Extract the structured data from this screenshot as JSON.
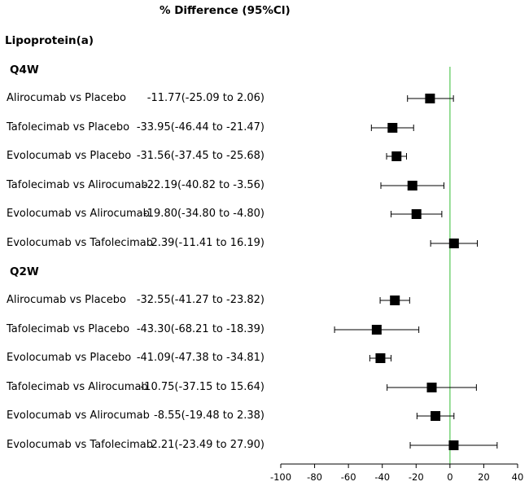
{
  "chart_data": {
    "type": "forest",
    "column_header": "% Difference (95%Cl)",
    "outcome": "Lipoprotein(a)",
    "reference_value": 0,
    "reference_color": "#7fd67f",
    "xlim": [
      -100,
      40
    ],
    "xticks": [
      -100,
      -80,
      -60,
      -40,
      -20,
      0,
      20,
      40
    ],
    "xtick_labels": [
      "-100",
      "-80",
      "-60",
      "-40",
      "-20",
      "0",
      "20",
      "40"
    ],
    "groups": [
      {
        "name": "Q4W",
        "rows": [
          {
            "label": "Alirocumab vs Placebo",
            "text": "-11.77(-25.09 to 2.06)",
            "estimate": -11.77,
            "lower": -25.09,
            "upper": 2.06
          },
          {
            "label": "Tafolecimab vs Placebo",
            "text": "-33.95(-46.44 to -21.47)",
            "estimate": -33.95,
            "lower": -46.44,
            "upper": -21.47
          },
          {
            "label": "Evolocumab vs Placebo",
            "text": "-31.56(-37.45 to -25.68)",
            "estimate": -31.56,
            "lower": -37.45,
            "upper": -25.68
          },
          {
            "label": "Tafolecimab vs Alirocumab",
            "text": "-22.19(-40.82 to -3.56)",
            "estimate": -22.19,
            "lower": -40.82,
            "upper": -3.56
          },
          {
            "label": "Evolocumab vs Alirocumab",
            "text": "-19.80(-34.80 to -4.80)",
            "estimate": -19.8,
            "lower": -34.8,
            "upper": -4.8
          },
          {
            "label": "Evolocumab vs Tafolecimab",
            "text": "2.39(-11.41 to 16.19)",
            "estimate": 2.39,
            "lower": -11.41,
            "upper": 16.19
          }
        ]
      },
      {
        "name": "Q2W",
        "rows": [
          {
            "label": "Alirocumab vs Placebo",
            "text": "-32.55(-41.27 to -23.82)",
            "estimate": -32.55,
            "lower": -41.27,
            "upper": -23.82
          },
          {
            "label": "Tafolecimab vs Placebo",
            "text": "-43.30(-68.21 to -18.39)",
            "estimate": -43.3,
            "lower": -68.21,
            "upper": -18.39
          },
          {
            "label": "Evolocumab vs Placebo",
            "text": "-41.09(-47.38 to -34.81)",
            "estimate": -41.09,
            "lower": -47.38,
            "upper": -34.81
          },
          {
            "label": "Tafolecimab vs Alirocumab",
            "text": "-10.75(-37.15 to 15.64)",
            "estimate": -10.75,
            "lower": -37.15,
            "upper": 15.64
          },
          {
            "label": "Evolocumab vs Alirocumab",
            "text": "-8.55(-19.48 to 2.38)",
            "estimate": -8.55,
            "lower": -19.48,
            "upper": 2.38
          },
          {
            "label": "Evolocumab vs Tafolecimab",
            "text": "2.21(-23.49 to 27.90)",
            "estimate": 2.21,
            "lower": -23.49,
            "upper": 27.9
          }
        ]
      }
    ]
  }
}
